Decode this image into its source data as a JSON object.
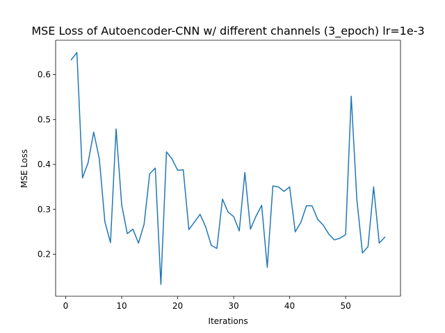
{
  "chart_data": {
    "type": "line",
    "title": "MSE Loss of Autoencoder-CNN w/ different channels (3_epoch) lr=1e-3",
    "xlabel": "Iterations",
    "ylabel": "MSE Loss",
    "xlim": [
      -1.8,
      59.8
    ],
    "ylim": [
      0.1067,
      0.6764
    ],
    "xticks": [
      0,
      10,
      20,
      30,
      40,
      50
    ],
    "yticks": [
      0.2,
      0.3,
      0.4,
      0.5,
      0.6
    ],
    "grid": false,
    "legend": "none",
    "series": [
      {
        "color": "#1f77b4",
        "x": [
          1,
          2,
          3,
          4,
          5,
          6,
          7,
          8,
          9,
          10,
          11,
          12,
          13,
          14,
          15,
          16,
          17,
          18,
          19,
          20,
          21,
          22,
          23,
          24,
          25,
          26,
          27,
          28,
          29,
          30,
          31,
          32,
          33,
          34,
          35,
          36,
          37,
          38,
          39,
          40,
          41,
          42,
          43,
          44,
          45,
          46,
          47,
          48,
          49,
          50,
          51,
          52,
          53,
          54,
          55,
          56,
          57
        ],
        "values": [
          0.633,
          0.649,
          0.37,
          0.404,
          0.472,
          0.413,
          0.272,
          0.226,
          0.479,
          0.31,
          0.246,
          0.256,
          0.225,
          0.267,
          0.379,
          0.392,
          0.133,
          0.428,
          0.412,
          0.387,
          0.388,
          0.255,
          0.272,
          0.289,
          0.261,
          0.22,
          0.213,
          0.323,
          0.294,
          0.284,
          0.252,
          0.382,
          0.256,
          0.285,
          0.309,
          0.171,
          0.352,
          0.35,
          0.34,
          0.35,
          0.25,
          0.271,
          0.308,
          0.308,
          0.278,
          0.265,
          0.245,
          0.232,
          0.236,
          0.244,
          0.552,
          0.323,
          0.203,
          0.217,
          0.35,
          0.225,
          0.238
        ]
      }
    ]
  }
}
